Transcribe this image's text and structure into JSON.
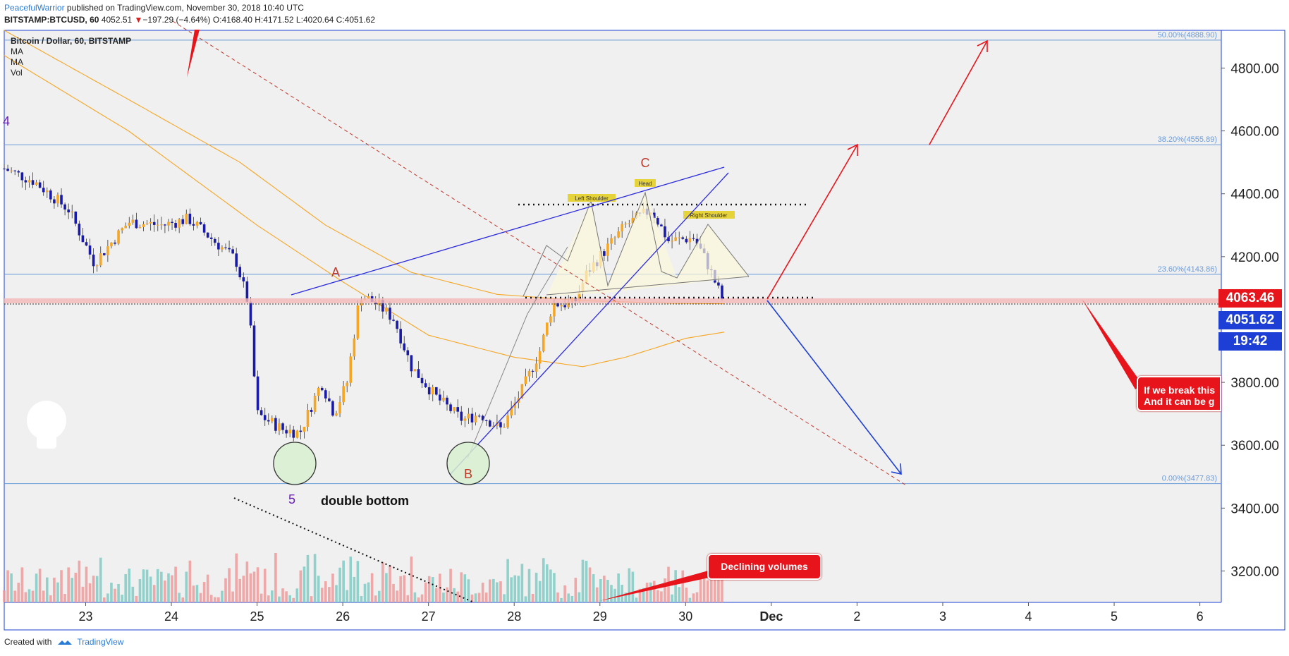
{
  "header": {
    "author": "PeacefulWarrior",
    "published": " published on TradingView.com, November 30, 2018 10:40 UTC",
    "symbol": "BITSTAMP:BTCUSD, 60",
    "last": "4052.51",
    "change_arrow": "▼",
    "change": "−197.29 (−4.64%)",
    "ohlc": "O:4168.40 H:4171.52 L:4020.64 C:4051.62"
  },
  "legend": {
    "title": "Bitcoin / Dollar, 60, BITSTAMP",
    "ind1": "MA",
    "ind2": "MA",
    "ind3": "Vol"
  },
  "footer": {
    "created": "Created with",
    "brand": "TradingView"
  },
  "price_labels": {
    "last": "4063.46",
    "close": "4051.62",
    "timer": "19:42"
  },
  "callouts": {
    "volumes": "Declining volumes",
    "break_line1": "If we break this",
    "break_line2": "And it can be g"
  },
  "annotations": {
    "A": "A",
    "B": "B",
    "C": "C",
    "five": "5",
    "four": "4",
    "double_bottom": "double bottom",
    "left_shoulder": "Left Shoulder",
    "head": "Head",
    "right_shoulder": "Right Shoulder"
  },
  "colors": {
    "background": "#f0f0f0",
    "up_candle": "#f6a623",
    "down_candle": "#1a1aa8",
    "ma_color": "#f6a623",
    "trend_blue": "#2a2ae0",
    "arrow_red": "#e8141c",
    "fib_line": "#6a9bd8",
    "vol_up": "#80cbc4",
    "vol_down": "#ef9a9a"
  },
  "chart_data": {
    "type": "candlestick",
    "ylim": [
      3100,
      4920
    ],
    "yticks": [
      "4800.00",
      "4600.00",
      "4400.00",
      "4200.00",
      "4000.00",
      "3800.00",
      "3600.00",
      "3400.00",
      "3200.00"
    ],
    "ytick_values": [
      4800,
      4600,
      4400,
      4200,
      4000,
      3800,
      3600,
      3400,
      3200
    ],
    "xticks": [
      "23",
      "24",
      "25",
      "26",
      "27",
      "28",
      "29",
      "30",
      "Dec",
      "2",
      "3",
      "4",
      "5",
      "6"
    ],
    "xtick_days": [
      0,
      1,
      2,
      3,
      4,
      5,
      6,
      7,
      8,
      9,
      10,
      11,
      12,
      13
    ],
    "xrange_days": [
      -0.95,
      13.25
    ],
    "fib_levels": [
      {
        "label": "50.00%(4888.90)",
        "value": 4888.9
      },
      {
        "label": "38.20%(4555.89)",
        "value": 4555.89
      },
      {
        "label": "23.60%(4143.86)",
        "value": 4143.86
      },
      {
        "label": "0.00%(3477.83)",
        "value": 3477.83
      }
    ],
    "anchor_path": [
      [
        -0.95,
        4480
      ],
      [
        -0.6,
        4440
      ],
      [
        -0.2,
        4350
      ],
      [
        0.1,
        4180
      ],
      [
        0.5,
        4310
      ],
      [
        0.9,
        4300
      ],
      [
        1.2,
        4320
      ],
      [
        1.5,
        4250
      ],
      [
        1.75,
        4190
      ],
      [
        1.9,
        4050
      ],
      [
        2.0,
        3700
      ],
      [
        2.3,
        3650
      ],
      [
        2.5,
        3640
      ],
      [
        2.75,
        3800
      ],
      [
        2.9,
        3700
      ],
      [
        3.05,
        3800
      ],
      [
        3.2,
        4080
      ],
      [
        3.4,
        4050
      ],
      [
        3.6,
        4000
      ],
      [
        3.8,
        3850
      ],
      [
        4.1,
        3750
      ],
      [
        4.4,
        3680
      ],
      [
        4.6,
        3700
      ],
      [
        4.85,
        3650
      ],
      [
        5.1,
        3780
      ],
      [
        5.3,
        3900
      ],
      [
        5.45,
        4050
      ],
      [
        5.7,
        4050
      ],
      [
        5.85,
        4150
      ],
      [
        6.0,
        4200
      ],
      [
        6.3,
        4300
      ],
      [
        6.6,
        4350
      ],
      [
        6.8,
        4250
      ],
      [
        7.1,
        4260
      ],
      [
        7.25,
        4180
      ],
      [
        7.45,
        4050
      ]
    ],
    "ma_fast": [
      [
        -0.95,
        4920
      ],
      [
        0.5,
        4700
      ],
      [
        1.8,
        4500
      ],
      [
        2.8,
        4300
      ],
      [
        3.8,
        4150
      ],
      [
        4.8,
        4080
      ],
      [
        5.8,
        4060
      ],
      [
        6.8,
        4052
      ],
      [
        7.45,
        4050
      ]
    ],
    "ma_slow": [
      [
        -0.95,
        4840
      ],
      [
        0.5,
        4600
      ],
      [
        2.0,
        4300
      ],
      [
        3.0,
        4120
      ],
      [
        4.0,
        3950
      ],
      [
        5.0,
        3880
      ],
      [
        5.8,
        3850
      ],
      [
        6.3,
        3880
      ],
      [
        7.0,
        3940
      ],
      [
        7.45,
        3960
      ]
    ]
  }
}
